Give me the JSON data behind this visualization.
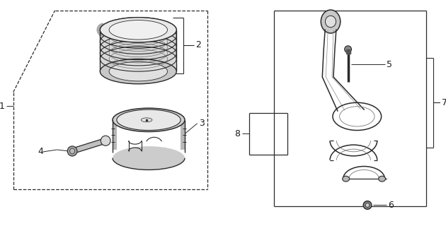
{
  "bg_color": "#ffffff",
  "line_color": "#2a2a2a",
  "label_color": "#1a1a1a",
  "fig_width": 6.3,
  "fig_height": 3.2,
  "dpi": 100
}
